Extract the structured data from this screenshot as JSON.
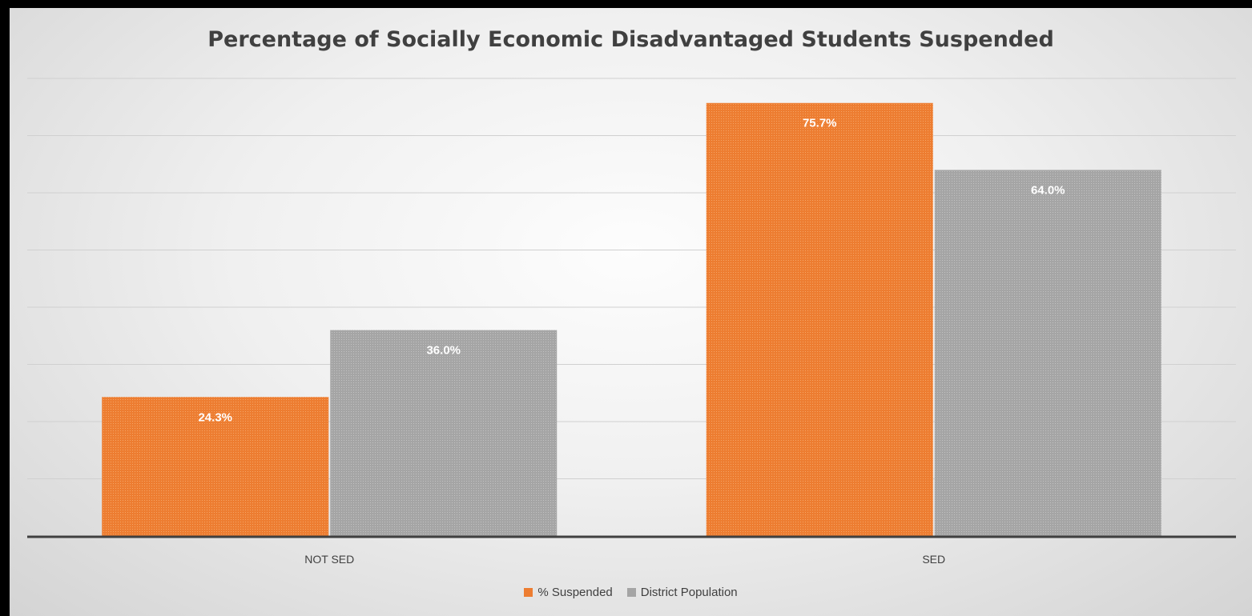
{
  "chart_data": {
    "type": "bar",
    "title": "Percentage of Socially Economic Disadvantaged Students Suspended",
    "categories": [
      "NOT SED",
      "SED"
    ],
    "series": [
      {
        "name": "% Suspended",
        "values": [
          24.3,
          75.7
        ],
        "labels": [
          "24.3%",
          "75.7%"
        ],
        "color": "#ED7D31"
      },
      {
        "name": "District Population",
        "values": [
          36.0,
          64.0
        ],
        "labels": [
          "36.0%",
          "64.0%"
        ],
        "color": "#A5A5A5"
      }
    ],
    "ylim": [
      0,
      80
    ],
    "grid": true,
    "legend_position": "bottom"
  }
}
